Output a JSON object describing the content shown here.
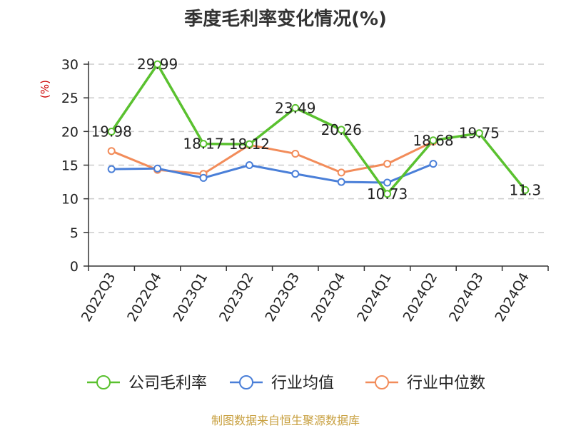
{
  "title": "季度毛利率变化情况(%)",
  "source": "制图数据来自恒生聚源数据库",
  "chart_data": {
    "type": "line",
    "title": "季度毛利率变化情况(%)",
    "ylabel": "(%)",
    "xlabel": "",
    "categories": [
      "2022Q3",
      "2022Q4",
      "2023Q1",
      "2023Q2",
      "2023Q3",
      "2023Q4",
      "2024Q1",
      "2024Q2",
      "2024Q3",
      "2024Q4"
    ],
    "ylim": [
      0,
      30
    ],
    "yticks": [
      0,
      5,
      10,
      15,
      20,
      25,
      30
    ],
    "grid": true,
    "legend_position": "bottom",
    "series": [
      {
        "name": "公司毛利率",
        "color": "#5ac12f",
        "values": [
          19.98,
          29.99,
          18.17,
          18.12,
          23.49,
          20.26,
          10.73,
          18.68,
          19.75,
          11.3
        ],
        "labels": [
          "19.98",
          "29.99",
          "18.17",
          "18.12",
          "23.49",
          "20.26",
          "10.73",
          "18.68",
          "19.75",
          "11.3"
        ]
      },
      {
        "name": "行业均值",
        "color": "#4a7fd8",
        "values": [
          14.4,
          14.5,
          13.1,
          15.0,
          13.7,
          12.5,
          12.4,
          15.2,
          null,
          null
        ]
      },
      {
        "name": "行业中位数",
        "color": "#f28c5a",
        "values": [
          17.1,
          14.3,
          13.7,
          18.0,
          16.7,
          13.9,
          15.2,
          18.5,
          null,
          null
        ]
      }
    ],
    "colors": {
      "unit_label": "#cc0000",
      "grid": "#cccccc",
      "axis": "#333333"
    }
  }
}
